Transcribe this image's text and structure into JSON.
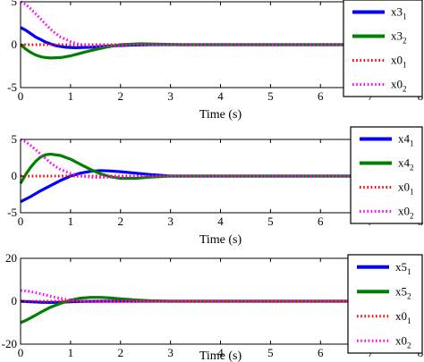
{
  "chart_data": [
    {
      "type": "line",
      "xlabel": "Time (s)",
      "ylabel": "",
      "xlim": [
        0,
        8
      ],
      "ylim": [
        -5,
        5
      ],
      "xticks": [
        "0",
        "1",
        "2",
        "3",
        "4",
        "5",
        "6",
        "7",
        "8"
      ],
      "yticks": [
        "-5",
        "0",
        "5"
      ],
      "legend_position": "top-right",
      "series": [
        {
          "name": "x3",
          "sub": "1",
          "color": "#0000ff",
          "style": "solid",
          "x": [
            0,
            0.1,
            0.2,
            0.3,
            0.4,
            0.5,
            0.7,
            0.9,
            1.1,
            1.4,
            1.8,
            2.2,
            2.6,
            3.0,
            8.0
          ],
          "y": [
            2.0,
            1.7,
            1.3,
            0.9,
            0.6,
            0.3,
            -0.1,
            -0.3,
            -0.35,
            -0.3,
            -0.15,
            -0.05,
            0.0,
            0.0,
            0.0
          ]
        },
        {
          "name": "x3",
          "sub": "2",
          "color": "#008000",
          "style": "solid",
          "x": [
            0,
            0.1,
            0.2,
            0.3,
            0.4,
            0.5,
            0.6,
            0.8,
            1.0,
            1.2,
            1.4,
            1.7,
            2.0,
            2.4,
            2.8,
            3.2,
            8.0
          ],
          "y": [
            0.0,
            -0.5,
            -0.9,
            -1.2,
            -1.4,
            -1.5,
            -1.55,
            -1.5,
            -1.3,
            -1.0,
            -0.7,
            -0.3,
            0.0,
            0.1,
            0.05,
            0.0,
            0.0
          ]
        },
        {
          "name": "x0",
          "sub": "1",
          "color": "#ff0000",
          "style": "dotted",
          "x": [
            0,
            1,
            2,
            3,
            4,
            5,
            6,
            7,
            8
          ],
          "y": [
            0,
            0,
            0,
            0,
            0,
            0,
            0,
            0,
            0
          ]
        },
        {
          "name": "x0",
          "sub": "2",
          "color": "#ff00ff",
          "style": "dotted",
          "x": [
            0,
            0.1,
            0.2,
            0.3,
            0.4,
            0.5,
            0.6,
            0.7,
            0.8,
            1.0,
            1.2,
            1.5,
            1.8,
            2.2,
            8.0
          ],
          "y": [
            5.0,
            4.7,
            4.2,
            3.6,
            3.0,
            2.4,
            1.8,
            1.3,
            0.9,
            0.35,
            0.0,
            -0.2,
            -0.15,
            0.0,
            0.0
          ]
        }
      ]
    },
    {
      "type": "line",
      "xlabel": "Time (s)",
      "ylabel": "",
      "xlim": [
        0,
        8
      ],
      "ylim": [
        -5,
        5
      ],
      "xticks": [
        "0",
        "1",
        "2",
        "3",
        "4",
        "5",
        "6",
        "7",
        "8"
      ],
      "yticks": [
        "-5",
        "0",
        "5"
      ],
      "legend_position": "top-right",
      "series": [
        {
          "name": "x4",
          "sub": "1",
          "color": "#0000ff",
          "style": "solid",
          "x": [
            0,
            0.2,
            0.4,
            0.6,
            0.8,
            1.0,
            1.2,
            1.4,
            1.6,
            1.8,
            2.0,
            2.3,
            2.6,
            3.0,
            8.0
          ],
          "y": [
            -3.5,
            -2.8,
            -2.0,
            -1.3,
            -0.6,
            0.0,
            0.4,
            0.65,
            0.75,
            0.7,
            0.6,
            0.4,
            0.2,
            0.0,
            0.0
          ]
        },
        {
          "name": "x4",
          "sub": "2",
          "color": "#008000",
          "style": "solid",
          "x": [
            0,
            0.1,
            0.2,
            0.3,
            0.4,
            0.5,
            0.6,
            0.8,
            1.0,
            1.2,
            1.4,
            1.6,
            1.8,
            2.0,
            2.3,
            2.6,
            3.0,
            8.0
          ],
          "y": [
            -1.0,
            0.2,
            1.2,
            2.0,
            2.6,
            2.9,
            3.0,
            2.8,
            2.3,
            1.6,
            0.9,
            0.3,
            -0.1,
            -0.3,
            -0.3,
            -0.15,
            0.0,
            0.0
          ]
        },
        {
          "name": "x0",
          "sub": "1",
          "color": "#ff0000",
          "style": "dotted",
          "x": [
            0,
            1,
            2,
            3,
            4,
            5,
            6,
            7,
            8
          ],
          "y": [
            0,
            0,
            0,
            0,
            0,
            0,
            0,
            0,
            0
          ]
        },
        {
          "name": "x0",
          "sub": "2",
          "color": "#ff00ff",
          "style": "dotted",
          "x": [
            0,
            0.1,
            0.2,
            0.3,
            0.4,
            0.5,
            0.6,
            0.7,
            0.8,
            1.0,
            1.2,
            1.5,
            1.8,
            2.2,
            8.0
          ],
          "y": [
            5.0,
            4.7,
            4.2,
            3.6,
            3.0,
            2.4,
            1.8,
            1.3,
            0.9,
            0.35,
            0.0,
            -0.2,
            -0.15,
            0.0,
            0.0
          ]
        }
      ]
    },
    {
      "type": "line",
      "xlabel": "Time (s)",
      "ylabel": "",
      "xlim": [
        0,
        8
      ],
      "ylim": [
        -20,
        20
      ],
      "xticks": [
        "0",
        "1",
        "2",
        "3",
        "4",
        "5",
        "6",
        "7",
        "8"
      ],
      "yticks": [
        "-20",
        "0",
        "20"
      ],
      "legend_position": "top-right",
      "series": [
        {
          "name": "x5",
          "sub": "1",
          "color": "#0000ff",
          "style": "solid",
          "x": [
            0,
            0.2,
            0.4,
            0.6,
            0.8,
            1.0,
            1.3,
            1.6,
            2.0,
            2.5,
            3.0,
            8.0
          ],
          "y": [
            0.0,
            -0.3,
            -0.5,
            -0.6,
            -0.5,
            -0.3,
            -0.1,
            0.0,
            0.0,
            0.0,
            0.0,
            0.0
          ]
        },
        {
          "name": "x5",
          "sub": "2",
          "color": "#008000",
          "style": "solid",
          "x": [
            0,
            0.1,
            0.2,
            0.3,
            0.4,
            0.5,
            0.6,
            0.8,
            1.0,
            1.2,
            1.4,
            1.6,
            1.8,
            2.0,
            2.3,
            2.6,
            3.0,
            8.0
          ],
          "y": [
            -10.0,
            -9.0,
            -7.8,
            -6.5,
            -5.2,
            -4.0,
            -2.8,
            -1.0,
            0.5,
            1.4,
            1.8,
            1.8,
            1.5,
            1.1,
            0.6,
            0.2,
            0.0,
            0.0
          ]
        },
        {
          "name": "x0",
          "sub": "1",
          "color": "#ff0000",
          "style": "dotted",
          "x": [
            0,
            1,
            2,
            3,
            4,
            5,
            6,
            7,
            8
          ],
          "y": [
            0,
            0,
            0,
            0,
            0,
            0,
            0,
            0,
            0
          ]
        },
        {
          "name": "x0",
          "sub": "2",
          "color": "#ff00ff",
          "style": "dotted",
          "x": [
            0,
            0.1,
            0.2,
            0.3,
            0.4,
            0.5,
            0.6,
            0.8,
            1.0,
            1.2,
            1.5,
            1.8,
            2.2,
            8.0
          ],
          "y": [
            5.0,
            4.8,
            4.5,
            4.0,
            3.5,
            2.9,
            2.3,
            1.3,
            0.5,
            0.0,
            -0.2,
            -0.1,
            0.0,
            0.0
          ]
        }
      ]
    }
  ]
}
